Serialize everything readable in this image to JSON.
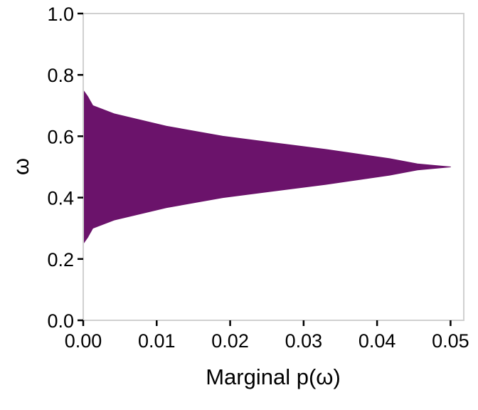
{
  "chart_data": {
    "type": "area",
    "orientation": "horizontal",
    "title": "",
    "xlabel": "Marginal p(ω)",
    "ylabel": "ω",
    "xlim": [
      0,
      0.0518
    ],
    "ylim": [
      0,
      1.0
    ],
    "xticks": [
      "0.00",
      "0.01",
      "0.02",
      "0.03",
      "0.04",
      "0.05"
    ],
    "yticks": [
      "0.0",
      "0.2",
      "0.4",
      "0.6",
      "0.8",
      "1.0"
    ],
    "grid": false,
    "fill_color": "#6b136b",
    "frame_color": "#d0d0d0",
    "omega": [
      0.25,
      0.26,
      0.27,
      0.3,
      0.327,
      0.367,
      0.4,
      0.443,
      0.473,
      0.49,
      0.5,
      0.51,
      0.527,
      0.557,
      0.6,
      0.633,
      0.673,
      0.7,
      0.73,
      0.74,
      0.75
    ],
    "p": [
      0,
      0.0003,
      0.0006,
      0.0013,
      0.0042,
      0.0113,
      0.019,
      0.033,
      0.0417,
      0.0455,
      0.05,
      0.0455,
      0.0417,
      0.033,
      0.019,
      0.0113,
      0.0042,
      0.0013,
      0.0006,
      0.0003,
      0
    ]
  }
}
